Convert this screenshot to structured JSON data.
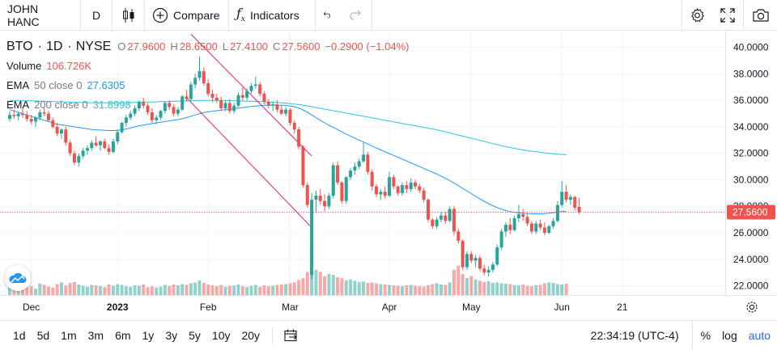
{
  "toolbar": {
    "symbol": "JOHN HANC",
    "interval": "D",
    "compare_label": "Compare",
    "indicators_label": "Indicators",
    "icons": [
      "candles-icon",
      "plus-circle-icon",
      "fx-icon",
      "undo-icon",
      "redo-icon",
      "gear-icon",
      "fullscreen-icon",
      "camera-icon"
    ]
  },
  "legend": {
    "ticker": "BTO",
    "sep1": "·",
    "interval": "1D",
    "sep2": "·",
    "exchange": "NYSE",
    "open_label": "O",
    "open": "27.9600",
    "high_label": "H",
    "high": "28.6500",
    "low_label": "L",
    "low": "27.4100",
    "close_label": "C",
    "close": "27.5600",
    "change": "−0.2900 (−1.04%)",
    "volume_label": "Volume",
    "volume": "106.726K",
    "ema50_label": "EMA",
    "ema50_params": "50 close 0",
    "ema50_value": "27.6305",
    "ema200_label": "EMA",
    "ema200_params": "200 close 0",
    "ema200_value": "31.8998"
  },
  "bottombar": {
    "ranges": [
      "1d",
      "5d",
      "1m",
      "3m",
      "6m",
      "1y",
      "3y",
      "5y",
      "10y",
      "20y"
    ],
    "clock": "22:34:19 (UTC-4)",
    "percent": "%",
    "log": "log",
    "auto": "auto"
  },
  "chart_data": {
    "type": "candlestick",
    "symbol": "BTO",
    "exchange": "NYSE",
    "interval": "1D",
    "ylim": [
      21.3,
      41.2
    ],
    "y_ticks": [
      "40.0000",
      "38.0000",
      "36.0000",
      "34.0000",
      "32.0000",
      "30.0000",
      "28.0000",
      "26.0000",
      "24.0000",
      "22.0000"
    ],
    "y_tick_values": [
      40,
      38,
      36,
      34,
      32,
      30,
      28,
      26,
      24,
      22
    ],
    "x_ticks": [
      {
        "label": "Dec",
        "bar": 5,
        "bold": false
      },
      {
        "label": "2023",
        "bar": 25,
        "bold": true
      },
      {
        "label": "Feb",
        "bar": 46,
        "bold": false
      },
      {
        "label": "Mar",
        "bar": 65,
        "bold": false
      },
      {
        "label": "Apr",
        "bar": 88,
        "bold": false
      },
      {
        "label": "May",
        "bar": 107,
        "bold": false
      },
      {
        "label": "Jun",
        "bar": 128,
        "bold": false
      },
      {
        "label": "21",
        "bar": 142,
        "bold": false
      }
    ],
    "last_price": "27.5600",
    "last_price_value": 27.56,
    "colors": {
      "up": "#26a69a",
      "down": "#ef5350",
      "ema50": "#2196f3",
      "ema200": "#26c6da",
      "trendline": "#e91e63",
      "price_line": "#ef5350"
    },
    "ohlc": [
      [
        34.6,
        35.2,
        34.4,
        34.9
      ],
      [
        34.9,
        35.3,
        34.6,
        34.8
      ],
      [
        34.8,
        35.1,
        34.5,
        35.0
      ],
      [
        35.0,
        35.4,
        34.7,
        34.9
      ],
      [
        34.9,
        35.2,
        34.4,
        34.6
      ],
      [
        34.6,
        34.9,
        34.2,
        34.4
      ],
      [
        34.4,
        34.8,
        34.0,
        34.7
      ],
      [
        34.7,
        35.3,
        34.5,
        35.1
      ],
      [
        35.1,
        35.5,
        34.8,
        35.0
      ],
      [
        35.0,
        35.2,
        34.4,
        34.5
      ],
      [
        34.5,
        34.7,
        33.9,
        34.0
      ],
      [
        34.0,
        34.3,
        33.3,
        33.5
      ],
      [
        33.5,
        33.9,
        33.1,
        33.8
      ],
      [
        33.8,
        34.0,
        32.6,
        32.8
      ],
      [
        32.8,
        33.0,
        31.8,
        32.0
      ],
      [
        32.0,
        32.2,
        31.1,
        31.3
      ],
      [
        31.3,
        32.0,
        31.0,
        31.8
      ],
      [
        31.8,
        32.4,
        31.6,
        32.2
      ],
      [
        32.2,
        32.6,
        31.9,
        32.4
      ],
      [
        32.4,
        33.0,
        32.2,
        32.8
      ],
      [
        32.8,
        33.3,
        32.5,
        32.6
      ],
      [
        32.6,
        33.0,
        32.2,
        32.9
      ],
      [
        32.9,
        33.1,
        32.3,
        32.4
      ],
      [
        32.4,
        32.7,
        31.9,
        32.1
      ],
      [
        32.1,
        33.1,
        32.0,
        32.9
      ],
      [
        32.9,
        33.8,
        32.7,
        33.6
      ],
      [
        33.6,
        34.4,
        33.5,
        34.3
      ],
      [
        34.3,
        34.9,
        34.0,
        34.7
      ],
      [
        34.7,
        35.2,
        34.5,
        35.0
      ],
      [
        35.0,
        35.6,
        34.8,
        35.4
      ],
      [
        35.4,
        36.0,
        35.2,
        35.9
      ],
      [
        35.9,
        36.2,
        35.4,
        35.6
      ],
      [
        35.6,
        35.8,
        34.9,
        35.1
      ],
      [
        35.1,
        35.4,
        34.3,
        34.5
      ],
      [
        34.5,
        34.9,
        34.2,
        34.7
      ],
      [
        34.7,
        35.3,
        34.5,
        35.2
      ],
      [
        35.2,
        35.9,
        35.0,
        35.8
      ],
      [
        35.8,
        36.0,
        35.3,
        35.5
      ],
      [
        35.5,
        35.7,
        34.8,
        35.0
      ],
      [
        35.0,
        35.5,
        34.8,
        35.3
      ],
      [
        35.3,
        36.4,
        35.2,
        36.3
      ],
      [
        36.3,
        36.8,
        35.9,
        36.1
      ],
      [
        36.1,
        37.4,
        36.0,
        37.2
      ],
      [
        37.2,
        38.0,
        36.9,
        37.7
      ],
      [
        37.7,
        39.3,
        37.5,
        38.2
      ],
      [
        38.2,
        38.5,
        37.1,
        37.3
      ],
      [
        37.3,
        37.6,
        36.3,
        36.5
      ],
      [
        36.5,
        36.8,
        35.9,
        36.2
      ],
      [
        36.2,
        36.5,
        35.8,
        36.0
      ],
      [
        36.0,
        36.3,
        35.2,
        35.4
      ],
      [
        35.4,
        36.0,
        35.2,
        35.8
      ],
      [
        35.8,
        36.1,
        35.0,
        35.2
      ],
      [
        35.2,
        35.8,
        35.0,
        35.6
      ],
      [
        35.6,
        36.6,
        35.5,
        36.4
      ],
      [
        36.4,
        37.0,
        36.0,
        36.2
      ],
      [
        36.2,
        36.9,
        36.0,
        36.7
      ],
      [
        36.7,
        37.3,
        36.5,
        37.1
      ],
      [
        37.1,
        37.8,
        36.9,
        37.2
      ],
      [
        37.2,
        37.4,
        36.3,
        36.5
      ],
      [
        36.5,
        36.7,
        35.7,
        35.9
      ],
      [
        35.9,
        36.1,
        35.4,
        35.6
      ],
      [
        35.6,
        35.9,
        35.2,
        35.7
      ],
      [
        35.7,
        36.0,
        35.1,
        35.3
      ],
      [
        35.3,
        35.6,
        34.9,
        35.0
      ],
      [
        35.0,
        35.5,
        34.8,
        35.3
      ],
      [
        35.3,
        35.4,
        34.1,
        34.3
      ],
      [
        34.3,
        34.5,
        33.5,
        33.8
      ],
      [
        33.8,
        34.0,
        32.3,
        32.5
      ],
      [
        32.5,
        32.6,
        29.4,
        29.6
      ],
      [
        29.6,
        29.8,
        27.9,
        28.1
      ],
      [
        22.8,
        29.0,
        22.5,
        28.5
      ],
      [
        28.5,
        29.2,
        27.5,
        28.8
      ],
      [
        28.8,
        29.3,
        28.1,
        28.4
      ],
      [
        28.4,
        28.9,
        27.6,
        28.0
      ],
      [
        28.0,
        29.0,
        27.8,
        28.8
      ],
      [
        28.8,
        31.3,
        28.6,
        31.1
      ],
      [
        31.1,
        31.4,
        29.6,
        29.8
      ],
      [
        29.8,
        29.9,
        28.2,
        28.4
      ],
      [
        28.4,
        30.3,
        28.2,
        30.2
      ],
      [
        30.2,
        30.9,
        30.0,
        30.7
      ],
      [
        30.7,
        31.3,
        30.4,
        31.0
      ],
      [
        31.0,
        31.6,
        30.8,
        31.4
      ],
      [
        31.4,
        32.8,
        31.3,
        31.9
      ],
      [
        31.9,
        32.1,
        30.4,
        30.6
      ],
      [
        30.6,
        30.8,
        29.2,
        29.5
      ],
      [
        29.5,
        29.7,
        28.7,
        28.9
      ],
      [
        28.9,
        29.3,
        28.5,
        29.1
      ],
      [
        29.1,
        29.5,
        28.6,
        28.8
      ],
      [
        28.8,
        30.6,
        28.7,
        30.2
      ],
      [
        30.2,
        30.4,
        29.3,
        29.5
      ],
      [
        29.5,
        29.6,
        28.8,
        29.0
      ],
      [
        29.0,
        29.8,
        28.8,
        29.6
      ],
      [
        29.6,
        29.9,
        29.0,
        29.3
      ],
      [
        29.3,
        30.1,
        29.1,
        29.8
      ],
      [
        29.8,
        30.0,
        29.3,
        29.5
      ],
      [
        29.5,
        29.7,
        29.0,
        29.2
      ],
      [
        29.2,
        29.4,
        28.3,
        28.5
      ],
      [
        28.5,
        28.6,
        26.8,
        27.0
      ],
      [
        27.0,
        27.1,
        26.3,
        26.5
      ],
      [
        26.5,
        27.2,
        26.3,
        27.0
      ],
      [
        27.0,
        27.6,
        26.8,
        27.3
      ],
      [
        27.3,
        27.6,
        26.7,
        26.9
      ],
      [
        26.9,
        28.0,
        26.8,
        27.8
      ],
      [
        27.8,
        28.0,
        25.8,
        26.1
      ],
      [
        26.1,
        26.3,
        25.2,
        25.4
      ],
      [
        25.4,
        25.5,
        23.2,
        23.4
      ],
      [
        23.4,
        24.6,
        23.2,
        24.4
      ],
      [
        24.4,
        24.6,
        23.7,
        23.9
      ],
      [
        23.9,
        24.3,
        23.4,
        24.1
      ],
      [
        24.1,
        24.3,
        23.1,
        23.3
      ],
      [
        23.3,
        23.6,
        22.8,
        23.0
      ],
      [
        23.0,
        23.5,
        22.7,
        23.2
      ],
      [
        23.2,
        23.8,
        23.0,
        23.6
      ],
      [
        23.6,
        25.1,
        23.5,
        24.9
      ],
      [
        24.9,
        26.3,
        24.7,
        26.1
      ],
      [
        26.1,
        26.8,
        25.7,
        26.6
      ],
      [
        26.6,
        27.1,
        25.9,
        26.2
      ],
      [
        26.2,
        27.3,
        26.1,
        27.1
      ],
      [
        27.1,
        28.1,
        26.8,
        27.4
      ],
      [
        27.4,
        27.8,
        26.9,
        27.2
      ],
      [
        27.2,
        27.5,
        26.5,
        26.7
      ],
      [
        26.7,
        26.9,
        25.9,
        26.1
      ],
      [
        26.1,
        26.9,
        25.9,
        26.7
      ],
      [
        26.7,
        27.0,
        26.2,
        26.4
      ],
      [
        26.4,
        26.8,
        25.8,
        26.0
      ],
      [
        26.0,
        26.6,
        25.9,
        26.5
      ],
      [
        26.5,
        27.1,
        26.3,
        26.9
      ],
      [
        26.9,
        28.4,
        26.8,
        28.1
      ],
      [
        28.1,
        29.9,
        27.9,
        29.1
      ],
      [
        29.1,
        29.6,
        28.3,
        28.5
      ],
      [
        28.5,
        28.9,
        28.1,
        28.7
      ],
      [
        28.7,
        28.8,
        27.7,
        27.9
      ],
      [
        27.96,
        28.65,
        27.41,
        27.56
      ]
    ],
    "volume": [
      40,
      45,
      35,
      50,
      38,
      42,
      30,
      55,
      48,
      40,
      36,
      52,
      60,
      45,
      58,
      62,
      50,
      44,
      40,
      48,
      46,
      42,
      38,
      50,
      44,
      52,
      48,
      42,
      40,
      46,
      44,
      50,
      38,
      42,
      36,
      40,
      48,
      44,
      50,
      46,
      52,
      48,
      56,
      60,
      70,
      58,
      50,
      46,
      42,
      48,
      40,
      44,
      46,
      50,
      42,
      38,
      44,
      48,
      40,
      46,
      42,
      44,
      48,
      50,
      52,
      56,
      60,
      72,
      80,
      110,
      230,
      120,
      110,
      90,
      100,
      96,
      85,
      80,
      70,
      74,
      68,
      62,
      64,
      58,
      60,
      56,
      52,
      50,
      48,
      46,
      44,
      42,
      46,
      48,
      44,
      42,
      40,
      46,
      52,
      56,
      50,
      48,
      60,
      120,
      140,
      100,
      80,
      90,
      74,
      68,
      62,
      66,
      58,
      60,
      56,
      54,
      52,
      48,
      46,
      50,
      44,
      42,
      46,
      48,
      56,
      60,
      58,
      52,
      50,
      54
    ],
    "ema50": [
      35.3,
      35.2,
      35.1,
      35.0,
      34.9,
      34.8,
      34.7,
      34.6,
      34.5,
      34.4,
      34.3,
      34.2,
      34.15,
      34.1,
      34.05,
      34.0,
      33.95,
      33.9,
      33.85,
      33.8,
      33.78,
      33.76,
      33.74,
      33.72,
      33.72,
      33.74,
      33.78,
      33.84,
      33.92,
      34.0,
      34.08,
      34.14,
      34.2,
      34.25,
      34.3,
      34.35,
      34.4,
      34.45,
      34.5,
      34.55,
      34.62,
      34.7,
      34.8,
      34.9,
      35.0,
      35.08,
      35.14,
      35.18,
      35.22,
      35.26,
      35.3,
      35.34,
      35.38,
      35.42,
      35.46,
      35.5,
      35.54,
      35.58,
      35.6,
      35.62,
      35.63,
      35.64,
      35.64,
      35.63,
      35.62,
      35.58,
      35.52,
      35.42,
      35.28,
      35.1,
      34.9,
      34.7,
      34.5,
      34.3,
      34.12,
      33.96,
      33.8,
      33.62,
      33.46,
      33.3,
      33.15,
      33.0,
      32.85,
      32.7,
      32.55,
      32.4,
      32.26,
      32.12,
      31.98,
      31.84,
      31.7,
      31.56,
      31.42,
      31.28,
      31.14,
      31.0,
      30.86,
      30.72,
      30.58,
      30.44,
      30.28,
      30.12,
      29.94,
      29.76,
      29.56,
      29.36,
      29.16,
      28.96,
      28.76,
      28.56,
      28.38,
      28.2,
      28.04,
      27.9,
      27.78,
      27.68,
      27.6,
      27.54,
      27.5,
      27.47,
      27.45,
      27.44,
      27.43,
      27.42,
      27.44,
      27.48,
      27.52,
      27.56,
      27.6,
      27.63
    ],
    "ema200": [
      36.0,
      36.0,
      35.99,
      35.98,
      35.97,
      35.96,
      35.95,
      35.94,
      35.93,
      35.92,
      35.91,
      35.9,
      35.89,
      35.88,
      35.87,
      35.86,
      35.85,
      35.84,
      35.83,
      35.82,
      35.82,
      35.82,
      35.82,
      35.82,
      35.82,
      35.82,
      35.82,
      35.82,
      35.83,
      35.84,
      35.85,
      35.86,
      35.87,
      35.88,
      35.89,
      35.9,
      35.91,
      35.92,
      35.93,
      35.94,
      35.95,
      35.96,
      35.97,
      35.98,
      35.99,
      36.0,
      36.0,
      36.0,
      36.0,
      36.0,
      35.99,
      35.98,
      35.97,
      35.96,
      35.95,
      35.94,
      35.93,
      35.92,
      35.91,
      35.9,
      35.88,
      35.86,
      35.84,
      35.82,
      35.8,
      35.76,
      35.72,
      35.68,
      35.64,
      35.58,
      35.52,
      35.46,
      35.4,
      35.34,
      35.28,
      35.22,
      35.16,
      35.1,
      35.04,
      34.98,
      34.92,
      34.86,
      34.8,
      34.74,
      34.68,
      34.62,
      34.56,
      34.5,
      34.44,
      34.38,
      34.32,
      34.26,
      34.2,
      34.14,
      34.08,
      34.02,
      33.96,
      33.9,
      33.84,
      33.78,
      33.7,
      33.62,
      33.54,
      33.46,
      33.38,
      33.3,
      33.22,
      33.14,
      33.06,
      32.98,
      32.9,
      32.82,
      32.74,
      32.66,
      32.58,
      32.5,
      32.44,
      32.38,
      32.32,
      32.26,
      32.2,
      32.16,
      32.12,
      32.08,
      32.04,
      32.0,
      31.97,
      31.94,
      31.92,
      31.9
    ],
    "trendlines": [
      {
        "x1_bar": 42,
        "y1": 41.0,
        "x2_bar": 70,
        "y2": 31.8
      },
      {
        "x1_bar": 41,
        "y1": 36.2,
        "x2_bar": 70,
        "y2": 26.4
      }
    ]
  }
}
